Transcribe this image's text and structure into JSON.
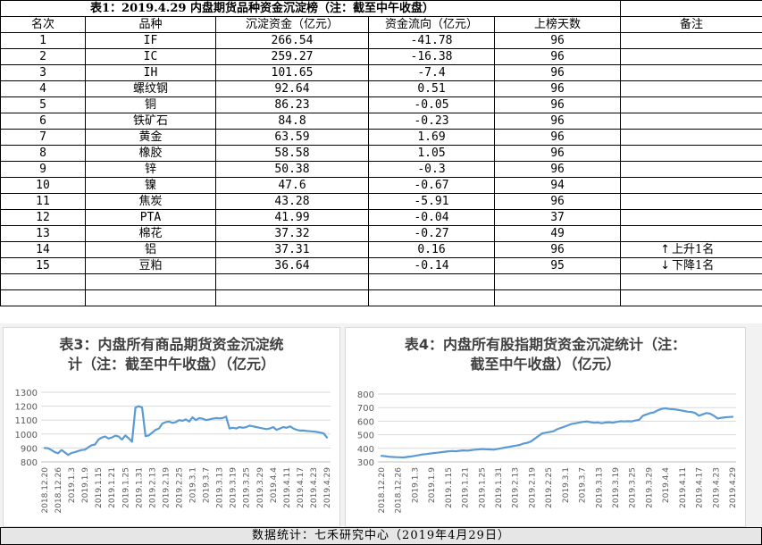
{
  "table": {
    "title": "表1：2019.4.29 内盘期货品种资金沉淀榜（注：截至中午收盘）",
    "headers": [
      "名次",
      "品种",
      "沉淀资金（亿元）",
      "资金流向（亿元）",
      "上榜天数",
      "备注"
    ],
    "rows": [
      {
        "rank": "1",
        "name": "IF",
        "funds": "266.54",
        "flow": "-41.78",
        "days": "96",
        "note": ""
      },
      {
        "rank": "2",
        "name": "IC",
        "funds": "259.27",
        "flow": "-16.38",
        "days": "96",
        "note": ""
      },
      {
        "rank": "3",
        "name": "IH",
        "funds": "101.65",
        "flow": "-7.4",
        "days": "96",
        "note": ""
      },
      {
        "rank": "4",
        "name": "螺纹钢",
        "funds": "92.64",
        "flow": "0.51",
        "days": "96",
        "note": ""
      },
      {
        "rank": "5",
        "name": "铜",
        "funds": "86.23",
        "flow": "-0.05",
        "days": "96",
        "note": ""
      },
      {
        "rank": "6",
        "name": "铁矿石",
        "funds": "84.8",
        "flow": "-0.23",
        "days": "96",
        "note": ""
      },
      {
        "rank": "7",
        "name": "黄金",
        "funds": "63.59",
        "flow": "1.69",
        "days": "96",
        "note": ""
      },
      {
        "rank": "8",
        "name": "橡胶",
        "funds": "58.58",
        "flow": "1.05",
        "days": "96",
        "note": ""
      },
      {
        "rank": "9",
        "name": "锌",
        "funds": "50.38",
        "flow": "-0.3",
        "days": "96",
        "note": ""
      },
      {
        "rank": "10",
        "name": "镍",
        "funds": "47.6",
        "flow": "-0.67",
        "days": "94",
        "note": ""
      },
      {
        "rank": "11",
        "name": "焦炭",
        "funds": "43.28",
        "flow": "-5.91",
        "days": "96",
        "note": ""
      },
      {
        "rank": "12",
        "name": "PTA",
        "funds": "41.99",
        "flow": "-0.04",
        "days": "37",
        "note": ""
      },
      {
        "rank": "13",
        "name": "棉花",
        "funds": "37.32",
        "flow": "-0.27",
        "days": "49",
        "note": ""
      },
      {
        "rank": "14",
        "name": "铝",
        "funds": "37.31",
        "flow": "0.16",
        "days": "96",
        "note": "上升1名",
        "arrow": "↑"
      },
      {
        "rank": "15",
        "name": "豆粕",
        "funds": "36.64",
        "flow": "-0.14",
        "days": "95",
        "note": "下降1名",
        "arrow": "↓"
      }
    ]
  },
  "chart_data": [
    {
      "type": "line",
      "title": "表3：内盘所有商品期货资金沉淀统计（注：截至中午收盘）（亿元）",
      "title_lines": [
        "表3：内盘所有商品期货资金沉淀统",
        "计（注：截至中午收盘）（亿元）"
      ],
      "ylim": [
        800,
        1300
      ],
      "yticks": [
        800,
        900,
        1000,
        1100,
        1200,
        1300
      ],
      "xtick_labels": [
        "2018.12.20",
        "2018.12.26",
        "2019.1.3",
        "2019.1.9",
        "2019.1.15",
        "2019.1.21",
        "2019.1.25",
        "2019.1.31",
        "2019.2.13",
        "2019.2.19",
        "2019.2.25",
        "2019.3.1",
        "2019.3.7",
        "2019.3.13",
        "2019.3.19",
        "2019.3.25",
        "2019.3.29",
        "2019.4.4",
        "2019.4.11",
        "2019.4.17",
        "2019.4.23",
        "2019.4.29"
      ],
      "color": "#5b9bd5",
      "values": [
        900,
        898,
        885,
        870,
        862,
        885,
        868,
        850,
        865,
        870,
        878,
        885,
        888,
        905,
        920,
        925,
        960,
        975,
        982,
        968,
        975,
        988,
        982,
        960,
        990,
        970,
        945,
        1190,
        1200,
        1190,
        985,
        990,
        1010,
        1030,
        1040,
        1075,
        1085,
        1090,
        1080,
        1085,
        1100,
        1095,
        1105,
        1090,
        1120,
        1100,
        1115,
        1110,
        1100,
        1105,
        1110,
        1115,
        1112,
        1115,
        1125,
        1040,
        1045,
        1040,
        1050,
        1045,
        1050,
        1060,
        1055,
        1050,
        1045,
        1040,
        1035,
        1040,
        1050,
        1030,
        1040,
        1050,
        1045,
        1055,
        1040,
        1030,
        1025,
        1025,
        1022,
        1020,
        1018,
        1015,
        1010,
        1005,
        975
      ]
    },
    {
      "type": "line",
      "title": "表4：内盘所有股指期货资金沉淀统计（注：截至中午收盘）（亿元）",
      "title_lines": [
        "表4：内盘所有股指期货资金沉淀统计（注：",
        "截至中午收盘）（亿元）"
      ],
      "ylim": [
        300,
        800
      ],
      "yticks": [
        300,
        400,
        500,
        600,
        700,
        800
      ],
      "xtick_labels": [
        "2018.12.20",
        "2018.12.26",
        "2019.1.3",
        "2019.1.9",
        "2019.1.15",
        "2019.1.21",
        "2019.1.25",
        "2019.1.31",
        "2019.2.13",
        "2019.2.19",
        "2019.2.25",
        "2019.3.1",
        "2019.3.7",
        "2019.3.13",
        "2019.3.19",
        "2019.3.25",
        "2019.3.29",
        "2019.4.4",
        "2019.4.11",
        "2019.4.17",
        "2019.4.23",
        "2019.4.29"
      ],
      "color": "#5b9bd5",
      "values": [
        345,
        342,
        338,
        336,
        335,
        334,
        333,
        337,
        340,
        345,
        350,
        355,
        358,
        362,
        365,
        368,
        372,
        375,
        378,
        380,
        378,
        382,
        385,
        383,
        386,
        390,
        392,
        395,
        393,
        392,
        390,
        395,
        400,
        405,
        410,
        415,
        420,
        425,
        435,
        440,
        450,
        470,
        490,
        510,
        515,
        520,
        525,
        540,
        550,
        560,
        570,
        580,
        585,
        590,
        595,
        598,
        592,
        588,
        590,
        585,
        590,
        592,
        588,
        595,
        600,
        598,
        600,
        598,
        605,
        610,
        640,
        650,
        660,
        665,
        680,
        690,
        695,
        690,
        688,
        685,
        680,
        675,
        670,
        668,
        660,
        640,
        650,
        660,
        655,
        640,
        620,
        625,
        628,
        630,
        632
      ]
    }
  ],
  "footer": "数据统计：七禾研究中心（2019年4月29日）"
}
